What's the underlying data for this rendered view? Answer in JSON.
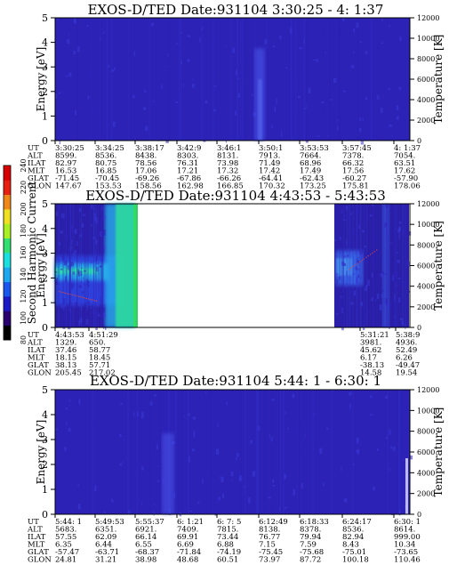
{
  "chart_data": [
    {
      "type": "heatmap",
      "title": "EXOS-D/TED   Date:931104   3:30:25 - 4: 1:37",
      "ylabel": "Energy [eV]",
      "ylabel_right": "Temperature [K]",
      "ylim": [
        0,
        5
      ],
      "y2lim": [
        0,
        12000
      ],
      "yticks": [
        "0",
        "1",
        "2",
        "3",
        "4",
        "5"
      ],
      "y2ticks": [
        "0",
        "2000",
        "4000",
        "6000",
        "8000",
        "10000",
        "12000"
      ],
      "table": {
        "labels": [
          "UT",
          "ALT",
          "ILAT",
          "MLT",
          "GLAT",
          "GLON"
        ],
        "columns": [
          [
            "3:30:25",
            "8599.",
            "82.97",
            "16.53",
            "-71.45",
            "147.67"
          ],
          [
            "3:34:25",
            "8536.",
            "80.75",
            "16.85",
            "-70.45",
            "153.53"
          ],
          [
            "3:38:17",
            "8438.",
            "78.56",
            "17.06",
            "-69.26",
            "158.56"
          ],
          [
            "3:42:9",
            "8303.",
            "76.31",
            "17.21",
            "-67.86",
            "162.98"
          ],
          [
            "3:46:1",
            "8131.",
            "73.98",
            "17.32",
            "-66.26",
            "166.85"
          ],
          [
            "3:50:1",
            "7913.",
            "71.49",
            "17.42",
            "-64.41",
            "170.32"
          ],
          [
            "3:53:53",
            "7664.",
            "68.96",
            "17.49",
            "-62.43",
            "173.25"
          ],
          [
            "3:57:45",
            "7378.",
            "66.32",
            "17.56",
            "-60.27",
            "175.81"
          ],
          [
            "4: 1:37",
            "7054.",
            "63.51",
            "17.62",
            "-57.90",
            "178.06"
          ]
        ]
      }
    },
    {
      "type": "heatmap",
      "title": "EXOS-D/TED   Date:931104   4:43:53 - 5:43:53",
      "ylabel": "Energy [eV]",
      "ylabel_right": "Temperature [K]",
      "ylim": [
        0,
        5
      ],
      "y2lim": [
        0,
        12000
      ],
      "yticks": [
        "0",
        "1",
        "2",
        "3",
        "4",
        "5"
      ],
      "y2ticks": [
        "0",
        "2000",
        "4000",
        "6000",
        "8000",
        "10000",
        "12000"
      ],
      "colorbar": {
        "label": "Second Harmonic Current",
        "range": [
          80,
          240
        ],
        "ticks": [
          "80",
          "100",
          "120",
          "140",
          "160",
          "180",
          "200",
          "220",
          "240"
        ]
      },
      "table": {
        "labels": [
          "UT",
          "ALT",
          "ILAT",
          "MLT",
          "GLAT",
          "GLON"
        ],
        "columns": [
          [
            "4:43:53",
            "1329.",
            "37.46",
            "18.15",
            "38.13",
            "205.45"
          ],
          [
            "4:51:29",
            "650.",
            "58.77",
            "18.45",
            "57.71",
            "217.02"
          ],
          [
            "5:31:21",
            "3981.",
            "45.62",
            "6.17",
            "-38.13",
            "14.58"
          ],
          [
            "5:38:9",
            "4936.",
            "52.49",
            "6.26",
            "-49.47",
            "19.54"
          ]
        ]
      }
    },
    {
      "type": "heatmap",
      "title": "EXOS-D/TED   Date:931104   5:44: 1 - 6:30: 1",
      "ylabel": "Energy [eV]",
      "ylabel_right": "Temperature [K]",
      "ylim": [
        0,
        5
      ],
      "y2lim": [
        0,
        12000
      ],
      "yticks": [
        "0",
        "1",
        "2",
        "3",
        "4",
        "5"
      ],
      "y2ticks": [
        "0",
        "2000",
        "4000",
        "6000",
        "8000",
        "10000",
        "12000"
      ],
      "table": {
        "labels": [
          "UT",
          "ALT",
          "ILAT",
          "MLT",
          "GLAT",
          "GLON"
        ],
        "columns": [
          [
            "5:44: 1",
            "5683.",
            "57.55",
            "6.35",
            "-57.47",
            "24.81"
          ],
          [
            "5:49:53",
            "6351.",
            "62.09",
            "6.44",
            "-63.71",
            "31.21"
          ],
          [
            "5:55:37",
            "6921.",
            "66.14",
            "6.55",
            "-68.37",
            "38.98"
          ],
          [
            "6: 1:21",
            "7409.",
            "69.91",
            "6.69",
            "-71.84",
            "48.68"
          ],
          [
            "6: 7: 5",
            "7815.",
            "73.44",
            "6.88",
            "-74.19",
            "60.51"
          ],
          [
            "6:12:49",
            "8138.",
            "76.77",
            "7.15",
            "-75.45",
            "73.97"
          ],
          [
            "6:18:33",
            "8378.",
            "79.94",
            "7.59",
            "-75.68",
            "87.72"
          ],
          [
            "6:24:17",
            "8536.",
            "82.94",
            "8.43",
            "-75.01",
            "100.18"
          ],
          [
            "6:30: 1",
            "8614.",
            "999.00",
            "10.34",
            "-73.65",
            "110.46"
          ]
        ]
      }
    }
  ]
}
